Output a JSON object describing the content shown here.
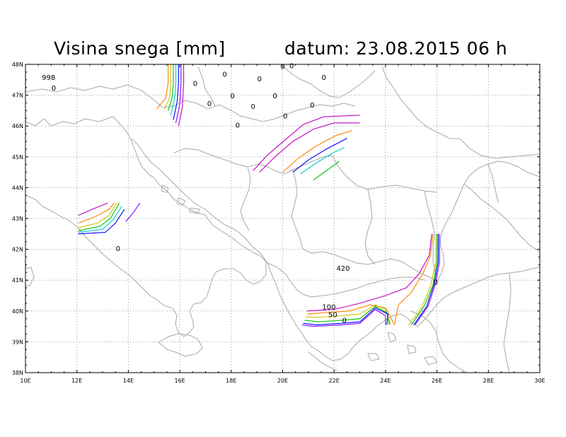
{
  "title": {
    "left": "Visina snega [mm]",
    "right": "datum: 23.08.2015   06 h"
  },
  "map": {
    "lon_range": [
      10,
      30
    ],
    "lat_range": [
      38,
      48
    ],
    "x_ticks": [
      "10E",
      "12E",
      "14E",
      "16E",
      "18E",
      "20E",
      "22E",
      "24E",
      "26E",
      "28E",
      "30E"
    ],
    "y_ticks": [
      "38N",
      "39N",
      "40N",
      "41N",
      "42N",
      "43N",
      "44N",
      "45N",
      "46N",
      "47N",
      "48N"
    ],
    "grid": "dotted",
    "contour_colors": [
      "#c000c0",
      "#ff7f00",
      "#c8c800",
      "#00c000",
      "#00c8c8",
      "#0000ff",
      "#8000ff"
    ],
    "contour_labels": [
      {
        "text": "998",
        "lon": 10.9,
        "lat": 47.5
      },
      {
        "text": "0",
        "lon": 11.1,
        "lat": 47.15
      },
      {
        "text": "0",
        "lon": 17.75,
        "lat": 47.6
      },
      {
        "text": "0",
        "lon": 20.0,
        "lat": 47.85
      },
      {
        "text": "0",
        "lon": 20.35,
        "lat": 47.87
      },
      {
        "text": "0",
        "lon": 16.6,
        "lat": 47.3
      },
      {
        "text": "0",
        "lon": 19.1,
        "lat": 47.45
      },
      {
        "text": "0",
        "lon": 21.6,
        "lat": 47.5
      },
      {
        "text": "0",
        "lon": 17.15,
        "lat": 46.65
      },
      {
        "text": "0",
        "lon": 18.05,
        "lat": 46.9
      },
      {
        "text": "0",
        "lon": 19.7,
        "lat": 46.9
      },
      {
        "text": "0",
        "lon": 18.85,
        "lat": 46.55
      },
      {
        "text": "0",
        "lon": 21.15,
        "lat": 46.6
      },
      {
        "text": "0",
        "lon": 20.1,
        "lat": 46.25
      },
      {
        "text": "0",
        "lon": 18.25,
        "lat": 45.95
      },
      {
        "text": "0",
        "lon": 13.6,
        "lat": 41.95
      },
      {
        "text": "420",
        "lon": 22.35,
        "lat": 41.3
      },
      {
        "text": "0",
        "lon": 25.95,
        "lat": 40.85
      },
      {
        "text": "100",
        "lon": 21.8,
        "lat": 40.05
      },
      {
        "text": "50",
        "lon": 21.95,
        "lat": 39.8
      },
      {
        "text": "0",
        "lon": 22.4,
        "lat": 39.62
      }
    ]
  }
}
